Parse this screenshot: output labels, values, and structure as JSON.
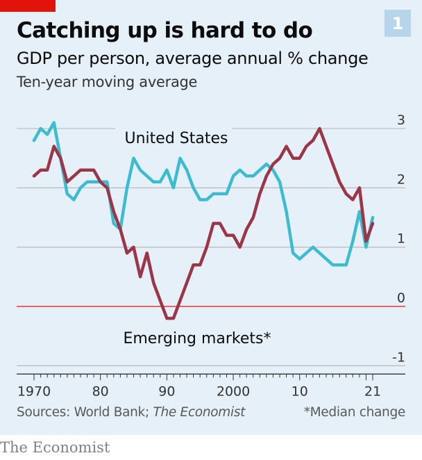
{
  "header": {
    "title": "Catching up is hard to do",
    "subtitle": "GDP per person, average annual % change",
    "subsubtitle": "Ten-year moving average",
    "badge": "1"
  },
  "footer": {
    "source_prefix": "Sources: World Bank; ",
    "source_italic": "The Economist",
    "note": "*Median change",
    "brand": "The Economist"
  },
  "colors": {
    "us": "#3ebccf",
    "em": "#9a3648",
    "zero_line": "#e3120b",
    "grid": "#bfbfbf",
    "panel": "#e5f0f8"
  },
  "chart_data": {
    "type": "line",
    "title": "Catching up is hard to do",
    "subtitle": "GDP per person, average annual % change",
    "xlim": [
      1970,
      2021
    ],
    "ylim": [
      -1,
      3
    ],
    "x_ticks": [
      {
        "value": 1970,
        "label": "1970"
      },
      {
        "value": 1980,
        "label": "80"
      },
      {
        "value": 1990,
        "label": "90"
      },
      {
        "value": 2000,
        "label": "2000"
      },
      {
        "value": 2010,
        "label": "10"
      },
      {
        "value": 2021,
        "label": "21"
      }
    ],
    "y_ticks": [
      {
        "value": 3,
        "label": "3"
      },
      {
        "value": 2,
        "label": "2"
      },
      {
        "value": 1,
        "label": "1"
      },
      {
        "value": 0,
        "label": "0"
      },
      {
        "value": -1,
        "label": "-1"
      }
    ],
    "grid": true,
    "series": [
      {
        "name": "United States",
        "color": "#3ebccf",
        "x": [
          1970,
          1971,
          1972,
          1973,
          1974,
          1975,
          1976,
          1977,
          1978,
          1979,
          1980,
          1981,
          1982,
          1983,
          1984,
          1985,
          1986,
          1987,
          1988,
          1989,
          1990,
          1991,
          1992,
          1993,
          1994,
          1995,
          1996,
          1997,
          1998,
          1999,
          2000,
          2001,
          2002,
          2003,
          2004,
          2005,
          2006,
          2007,
          2008,
          2009,
          2010,
          2011,
          2012,
          2013,
          2014,
          2015,
          2016,
          2017,
          2018,
          2019,
          2020,
          2021
        ],
        "values": [
          2.8,
          3.0,
          2.9,
          3.1,
          2.5,
          1.9,
          1.8,
          2.0,
          2.1,
          2.1,
          2.1,
          2.1,
          1.4,
          1.3,
          2.0,
          2.5,
          2.3,
          2.2,
          2.1,
          2.1,
          2.3,
          2.0,
          2.5,
          2.3,
          2.0,
          1.8,
          1.8,
          1.9,
          1.9,
          1.9,
          2.2,
          2.3,
          2.2,
          2.2,
          2.3,
          2.4,
          2.3,
          2.1,
          1.6,
          0.9,
          0.8,
          0.9,
          1.0,
          0.9,
          0.8,
          0.7,
          0.7,
          0.7,
          1.1,
          1.6,
          1.0,
          1.5
        ]
      },
      {
        "name": "Emerging markets*",
        "color": "#9a3648",
        "x": [
          1970,
          1971,
          1972,
          1973,
          1974,
          1975,
          1976,
          1977,
          1978,
          1979,
          1980,
          1981,
          1982,
          1983,
          1984,
          1985,
          1986,
          1987,
          1988,
          1989,
          1990,
          1991,
          1992,
          1993,
          1994,
          1995,
          1996,
          1997,
          1998,
          1999,
          2000,
          2001,
          2002,
          2003,
          2004,
          2005,
          2006,
          2007,
          2008,
          2009,
          2010,
          2011,
          2012,
          2013,
          2014,
          2015,
          2016,
          2017,
          2018,
          2019,
          2020,
          2021
        ],
        "values": [
          2.2,
          2.3,
          2.3,
          2.7,
          2.5,
          2.1,
          2.2,
          2.3,
          2.3,
          2.3,
          2.1,
          2.0,
          1.6,
          1.3,
          0.9,
          1.0,
          0.5,
          0.9,
          0.4,
          0.1,
          -0.2,
          -0.2,
          0.1,
          0.4,
          0.7,
          0.7,
          1.0,
          1.4,
          1.4,
          1.2,
          1.2,
          1.0,
          1.3,
          1.5,
          1.9,
          2.2,
          2.4,
          2.5,
          2.7,
          2.5,
          2.5,
          2.7,
          2.8,
          3.0,
          2.7,
          2.4,
          2.1,
          1.9,
          1.8,
          2.0,
          1.1,
          1.4
        ]
      }
    ],
    "annotations": [
      "United States",
      "Emerging markets*"
    ]
  }
}
